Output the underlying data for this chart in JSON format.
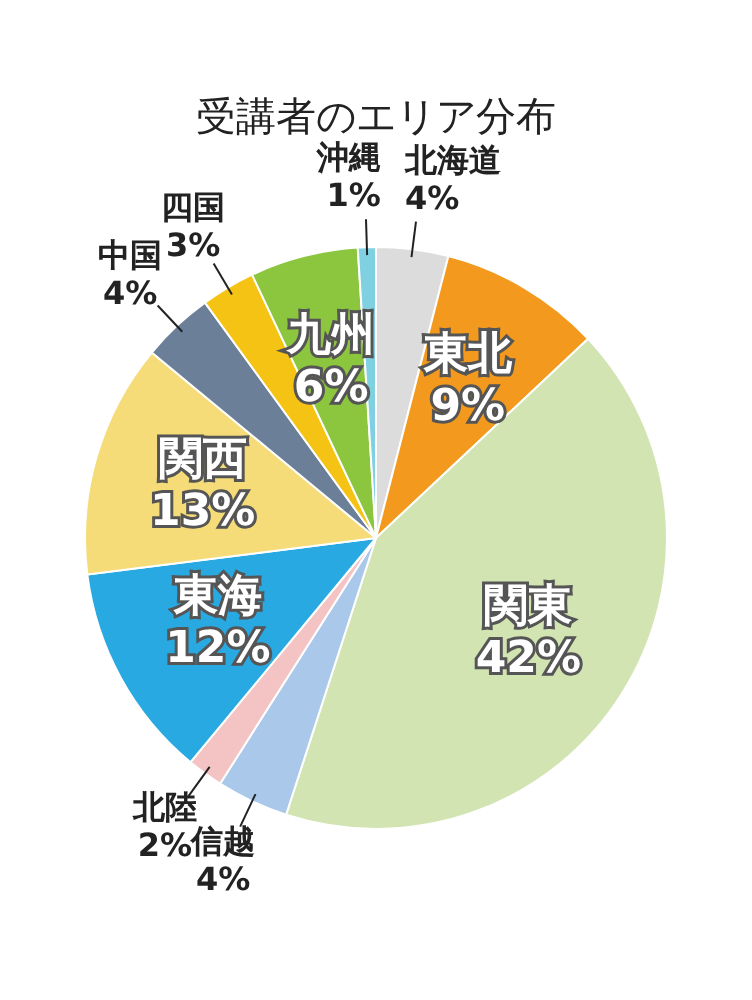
{
  "chart_data": {
    "type": "pie",
    "title": "受講者のエリア分布",
    "categories": [
      "北海道",
      "東北",
      "関東",
      "信越",
      "北陸",
      "東海",
      "関西",
      "中国",
      "四国",
      "九州",
      "沖縄"
    ],
    "values": [
      4,
      9,
      42,
      4,
      2,
      12,
      13,
      4,
      3,
      6,
      1
    ],
    "value_labels": [
      "4%",
      "9%",
      "42%",
      "4%",
      "2%",
      "12%",
      "13%",
      "4%",
      "3%",
      "6%",
      "1%"
    ],
    "colors": [
      "#dcdcdc",
      "#f39a1e",
      "#d3e4b3",
      "#a9c8ea",
      "#f4c4c4",
      "#29a9e1",
      "#f5dc78",
      "#6b7f99",
      "#f5c314",
      "#8cc63f",
      "#7fd0e0"
    ]
  }
}
